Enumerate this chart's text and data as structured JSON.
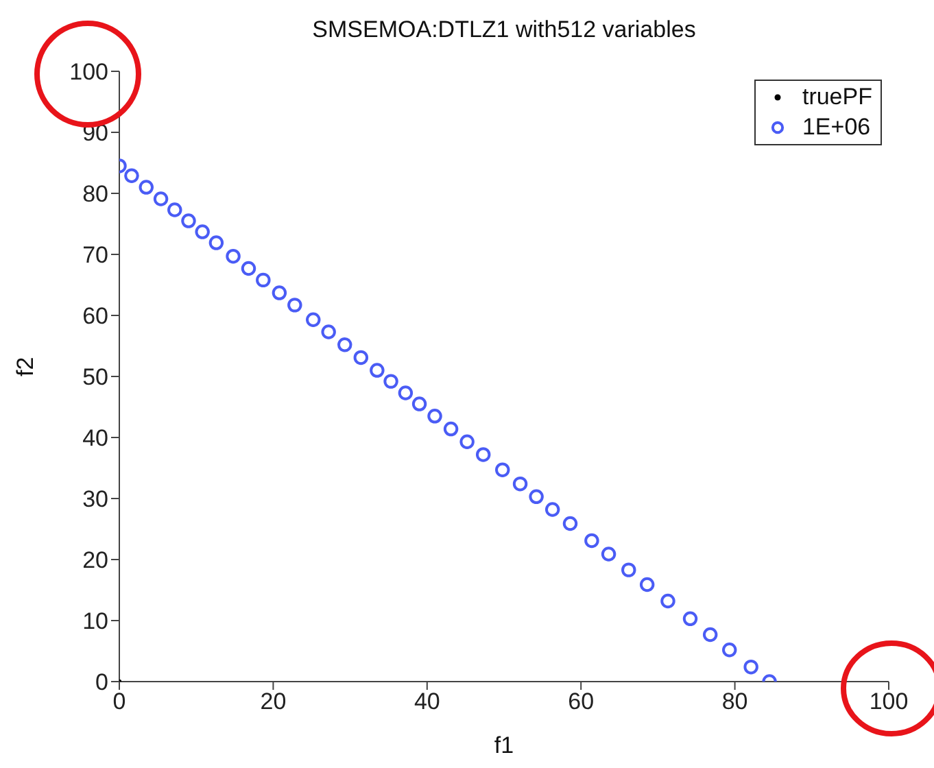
{
  "chart_data": {
    "type": "scatter",
    "title": "SMSEMOA:DTLZ1 with512 variables",
    "xlabel": "f1",
    "ylabel": "f2",
    "xlim": [
      0,
      100
    ],
    "xticks": [
      0,
      20,
      40,
      60,
      80,
      100
    ],
    "ylim": [
      0,
      100
    ],
    "yticks": [
      0,
      10,
      20,
      30,
      40,
      50,
      60,
      70,
      80,
      90,
      100
    ],
    "grid": false,
    "legend": "top right",
    "marker": "circle",
    "series": [
      {
        "name": "truePF",
        "color": "#000000",
        "x": [
          0
        ],
        "values": [
          0
        ]
      },
      {
        "name": "1E+06",
        "color": "#4a5cf5",
        "x": [
          0,
          1.6,
          3.5,
          5.4,
          7.2,
          9.0,
          10.8,
          12.6,
          14.8,
          16.8,
          18.7,
          20.8,
          22.8,
          25.2,
          27.2,
          29.3,
          31.4,
          33.5,
          35.3,
          37.2,
          39.0,
          41.0,
          43.1,
          45.2,
          47.3,
          49.8,
          52.1,
          54.2,
          56.3,
          58.6,
          61.4,
          63.6,
          66.2,
          68.6,
          71.3,
          74.2,
          76.8,
          79.3,
          82.1,
          84.5
        ],
        "values": [
          84.5,
          82.9,
          81.0,
          79.1,
          77.3,
          75.5,
          73.7,
          71.9,
          69.7,
          67.7,
          65.8,
          63.7,
          61.7,
          59.3,
          57.3,
          55.2,
          53.1,
          51.0,
          49.2,
          47.3,
          45.5,
          43.5,
          41.4,
          39.3,
          37.2,
          34.7,
          32.4,
          30.3,
          28.2,
          25.9,
          23.1,
          20.9,
          18.3,
          15.9,
          13.2,
          10.3,
          7.7,
          5.2,
          2.4,
          0
        ]
      }
    ]
  }
}
